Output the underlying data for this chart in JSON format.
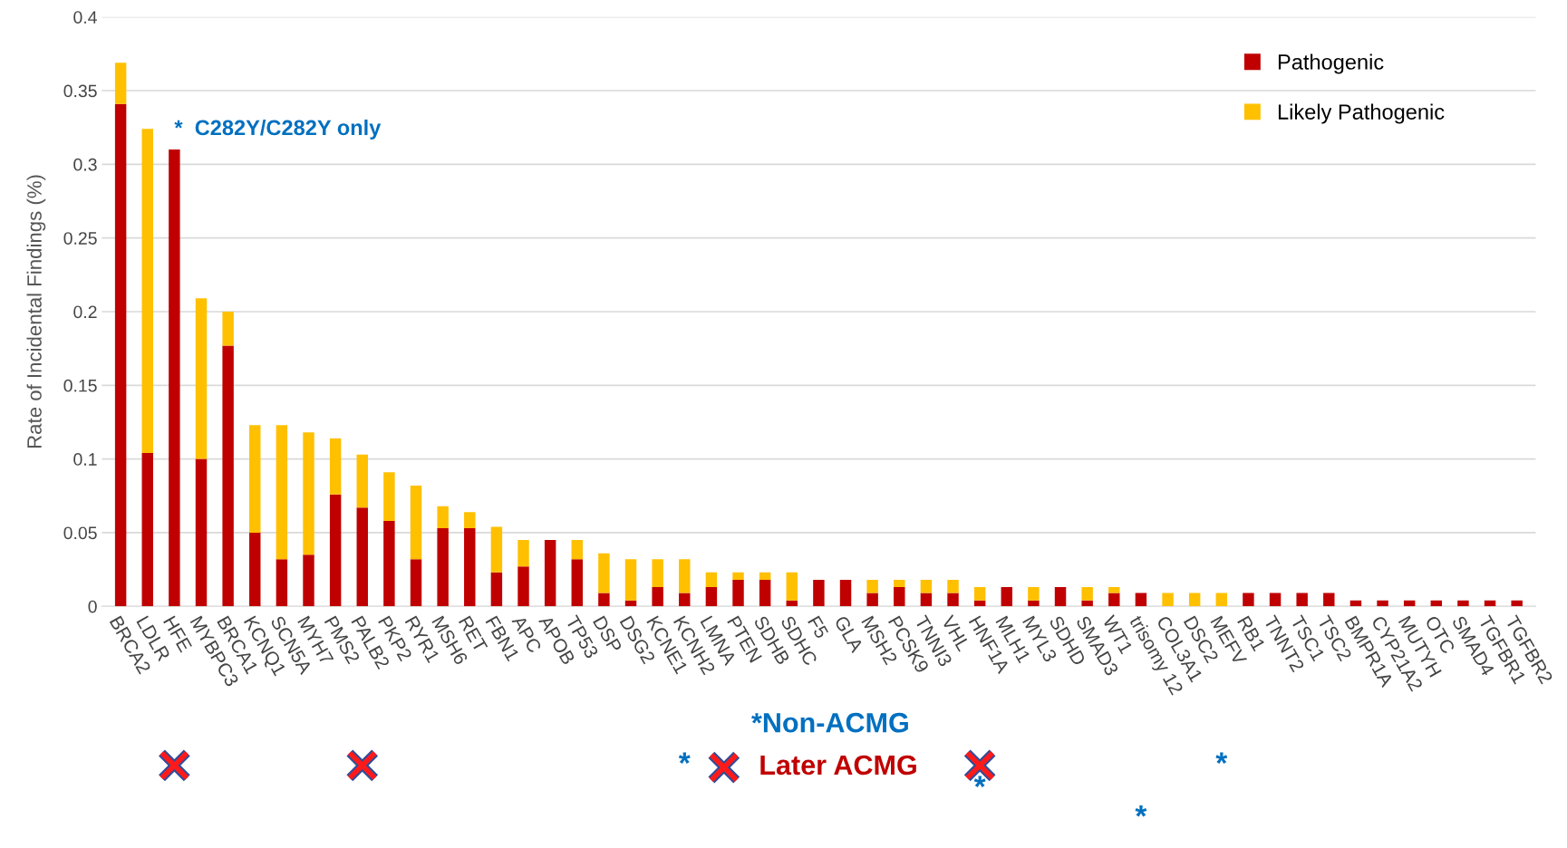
{
  "chart_data": {
    "type": "bar",
    "stacked": true,
    "ylabel": "Rate of Incidental Findings (%)",
    "categories": [
      "BRCA2",
      "LDLR",
      "HFE",
      "MYBPC3",
      "BRCA1",
      "KCNQ1",
      "SCN5A",
      "MYH7",
      "PMS2",
      "PALB2",
      "PKP2",
      "RYR1",
      "MSH6",
      "RET",
      "FBN1",
      "APC",
      "APOB",
      "TP53",
      "DSP",
      "DSG2",
      "KCNE1",
      "KCNH2",
      "LMNA",
      "PTEN",
      "SDHB",
      "SDHC",
      "F5",
      "GLA",
      "MSH2",
      "PCSK9",
      "TNNI3",
      "VHL",
      "HNF1A",
      "MLH1",
      "MYL3",
      "SDHD",
      "SMAD3",
      "WT1",
      "trisomy 12",
      "COL3A1",
      "DSC2",
      "MEFV",
      "RB1",
      "TNNT2",
      "TSC1",
      "TSC2",
      "BMPR1A",
      "CYP21A2",
      "MUTYH",
      "OTC",
      "SMAD4",
      "TGFBR1",
      "TGFBR2"
    ],
    "series": [
      {
        "name": "Pathogenic",
        "color": "#c00000",
        "values": [
          0.341,
          0.104,
          0.31,
          0.1,
          0.177,
          0.05,
          0.032,
          0.035,
          0.076,
          0.067,
          0.058,
          0.032,
          0.053,
          0.053,
          0.023,
          0.027,
          0.045,
          0.032,
          0.009,
          0.004,
          0.013,
          0.009,
          0.013,
          0.018,
          0.018,
          0.004,
          0.018,
          0.018,
          0.009,
          0.013,
          0.009,
          0.009,
          0.004,
          0.013,
          0.004,
          0.013,
          0.004,
          0.009,
          0.009,
          0,
          0,
          0,
          0.009,
          0.009,
          0.009,
          0.009,
          0.004,
          0.004,
          0.004,
          0.004,
          0.004,
          0.004,
          0.004
        ]
      },
      {
        "name": "Likely Pathogenic",
        "color": "#ffc000",
        "values": [
          0.028,
          0.22,
          0,
          0.109,
          0.023,
          0.073,
          0.091,
          0.083,
          0.038,
          0.036,
          0.033,
          0.05,
          0.015,
          0.011,
          0.031,
          0.018,
          0,
          0.013,
          0.027,
          0.028,
          0.019,
          0.023,
          0.01,
          0.005,
          0.005,
          0.019,
          0,
          0,
          0.009,
          0.005,
          0.009,
          0.009,
          0.009,
          0,
          0.009,
          0,
          0.009,
          0.004,
          0,
          0.009,
          0.009,
          0.009,
          0,
          0,
          0,
          0,
          0,
          0,
          0,
          0,
          0,
          0,
          0
        ]
      }
    ],
    "ylim": [
      0,
      0.4
    ],
    "yticks": [
      0,
      0.05,
      0.1,
      0.15,
      0.2,
      0.25,
      0.3,
      0.35,
      0.4
    ],
    "grid": "y",
    "legend": "top right",
    "annotations": [
      {
        "text": "*  C282Y/C282Y only",
        "x": "HFE",
        "y": 0.31
      },
      "*",
      "*",
      "*",
      "*",
      "*Non-ACMG",
      "Later ACMG"
    ]
  }
}
